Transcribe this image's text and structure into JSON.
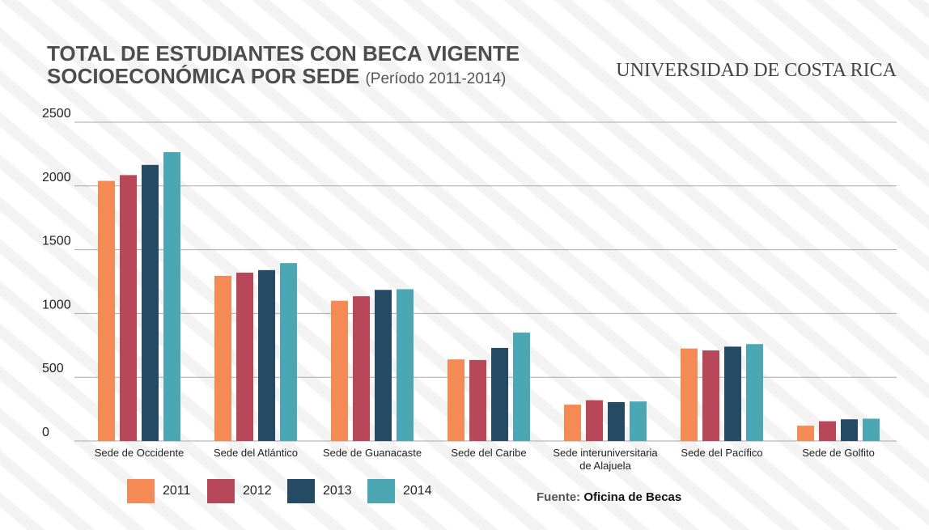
{
  "chart_data": {
    "type": "bar",
    "title": "TOTAL DE ESTUDIANTES CON BECA VIGENTE SOCIOECONÓMICA POR SEDE",
    "subtitle": "(Período 2011-2014)",
    "logo": "UNIVERSIDAD DE COSTA RICA",
    "source_label": "Fuente:",
    "source": "Oficina de Becas",
    "categories": [
      "Sede de Occidente",
      "Sede del Atlántico",
      "Sede de Guanacaste",
      "Sede del Caribe",
      "Sede interuniversitaria de Alajuela",
      "Sede del Pacífico",
      "Sede de Golfito"
    ],
    "series": [
      {
        "name": "2011",
        "color": "#f58a55",
        "values": [
          2040,
          1295,
          1100,
          640,
          285,
          725,
          120
        ]
      },
      {
        "name": "2012",
        "color": "#b8475a",
        "values": [
          2085,
          1320,
          1135,
          635,
          320,
          710,
          155
        ]
      },
      {
        "name": "2013",
        "color": "#254b64",
        "values": [
          2165,
          1340,
          1185,
          730,
          305,
          740,
          170
        ]
      },
      {
        "name": "2014",
        "color": "#4aa7b3",
        "values": [
          2265,
          1395,
          1190,
          850,
          310,
          760,
          175
        ]
      }
    ],
    "ylim": [
      0,
      2500
    ],
    "yticks": [
      0,
      500,
      1000,
      1500,
      2000,
      2500
    ],
    "grid": true
  }
}
